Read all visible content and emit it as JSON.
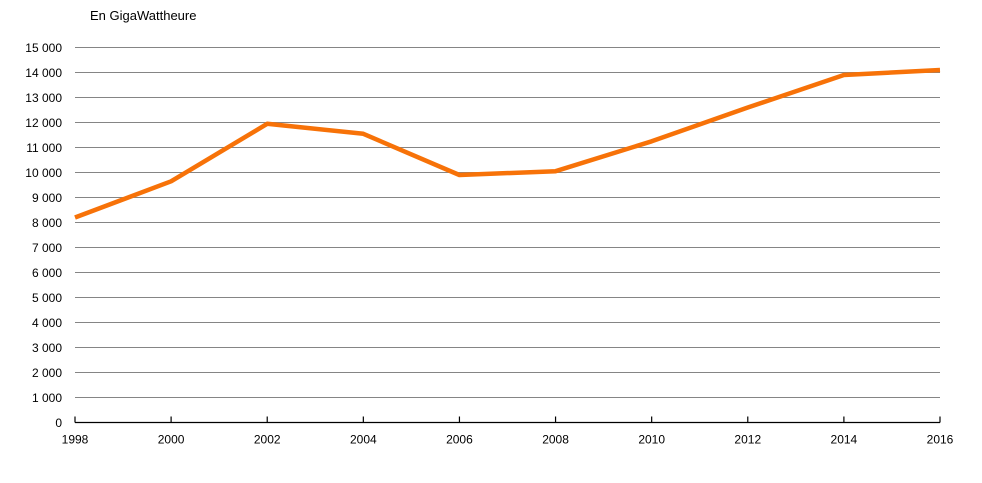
{
  "chart_data": {
    "type": "line",
    "title": "En GigaWattheure",
    "x": [
      1998,
      2000,
      2002,
      2004,
      2006,
      2008,
      2010,
      2012,
      2014,
      2016
    ],
    "x_labels": [
      "1998",
      "2000",
      "2002",
      "2004",
      "2006",
      "2008",
      "2010",
      "2012",
      "2014",
      "2016"
    ],
    "values": [
      8200,
      9650,
      11950,
      11550,
      9900,
      10050,
      11250,
      12600,
      13900,
      14100
    ],
    "ylim": [
      0,
      15000
    ],
    "ytick_step": 1000,
    "y_tick_labels": [
      "0",
      "1 000",
      "2 000",
      "3 000",
      "4 000",
      "5 000",
      "6 000",
      "7 000",
      "8 000",
      "9 000",
      "10 000",
      "11 000",
      "12 000",
      "13 000",
      "14 000",
      "15 000"
    ],
    "grid": true,
    "legend": false,
    "line_color": "#f77208",
    "grid_color": "#858585",
    "axis_color": "#000000",
    "background": "#ffffff"
  }
}
